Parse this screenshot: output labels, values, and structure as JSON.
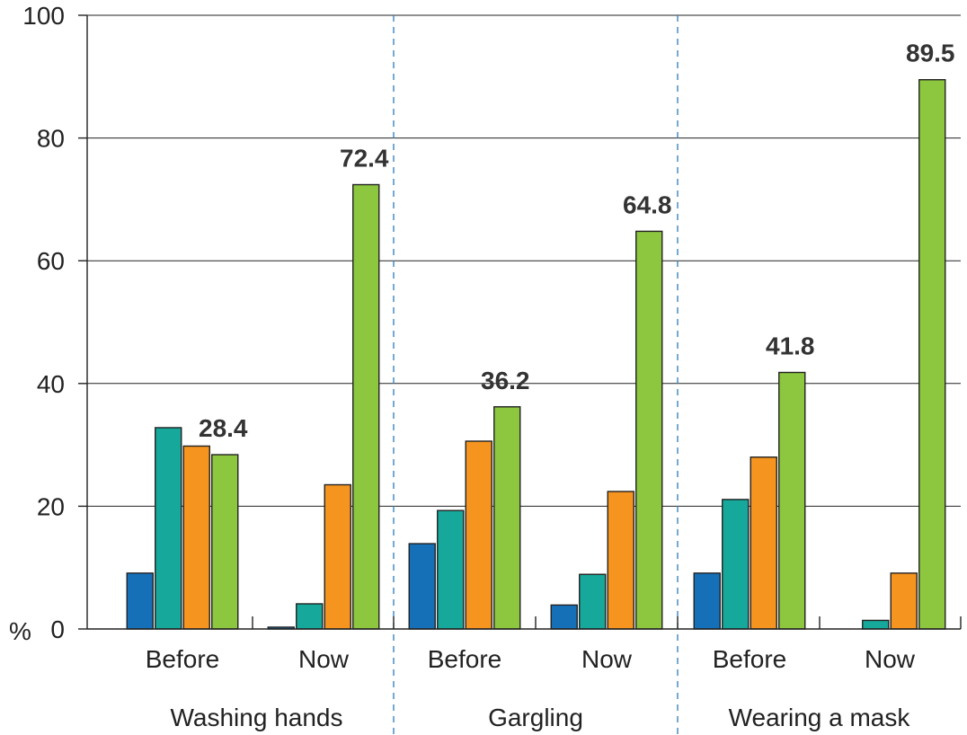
{
  "chart_data": {
    "type": "bar",
    "unit": "%",
    "ylim": [
      0,
      100
    ],
    "yticks": [
      0,
      20,
      40,
      60,
      80,
      100
    ],
    "grid": true,
    "colors": [
      "#1570b8",
      "#16a89a",
      "#f5941f",
      "#8dc63f"
    ],
    "groups": [
      {
        "name": "Washing hands",
        "subgroups": [
          {
            "name": "Before",
            "values": [
              9.1,
              32.8,
              29.8,
              28.4
            ],
            "labels": [
              "",
              "",
              "",
              "28.4"
            ]
          },
          {
            "name": "Now",
            "values": [
              0.3,
              4.1,
              23.5,
              72.4
            ],
            "labels": [
              "",
              "",
              "",
              "72.4"
            ]
          }
        ]
      },
      {
        "name": "Gargling",
        "subgroups": [
          {
            "name": "Before",
            "values": [
              13.9,
              19.3,
              30.6,
              36.2
            ],
            "labels": [
              "",
              "",
              "",
              "36.2"
            ]
          },
          {
            "name": "Now",
            "values": [
              3.9,
              8.9,
              22.4,
              64.8
            ],
            "labels": [
              "",
              "",
              "",
              "64.8"
            ]
          }
        ]
      },
      {
        "name": "Wearing a mask",
        "subgroups": [
          {
            "name": "Before",
            "values": [
              9.1,
              21.1,
              28.0,
              41.8
            ],
            "labels": [
              "",
              "",
              "",
              "41.8"
            ]
          },
          {
            "name": "Now",
            "values": [
              0.0,
              1.4,
              9.1,
              89.5
            ],
            "labels": [
              "",
              "",
              "",
              "89.5"
            ]
          }
        ]
      }
    ]
  }
}
